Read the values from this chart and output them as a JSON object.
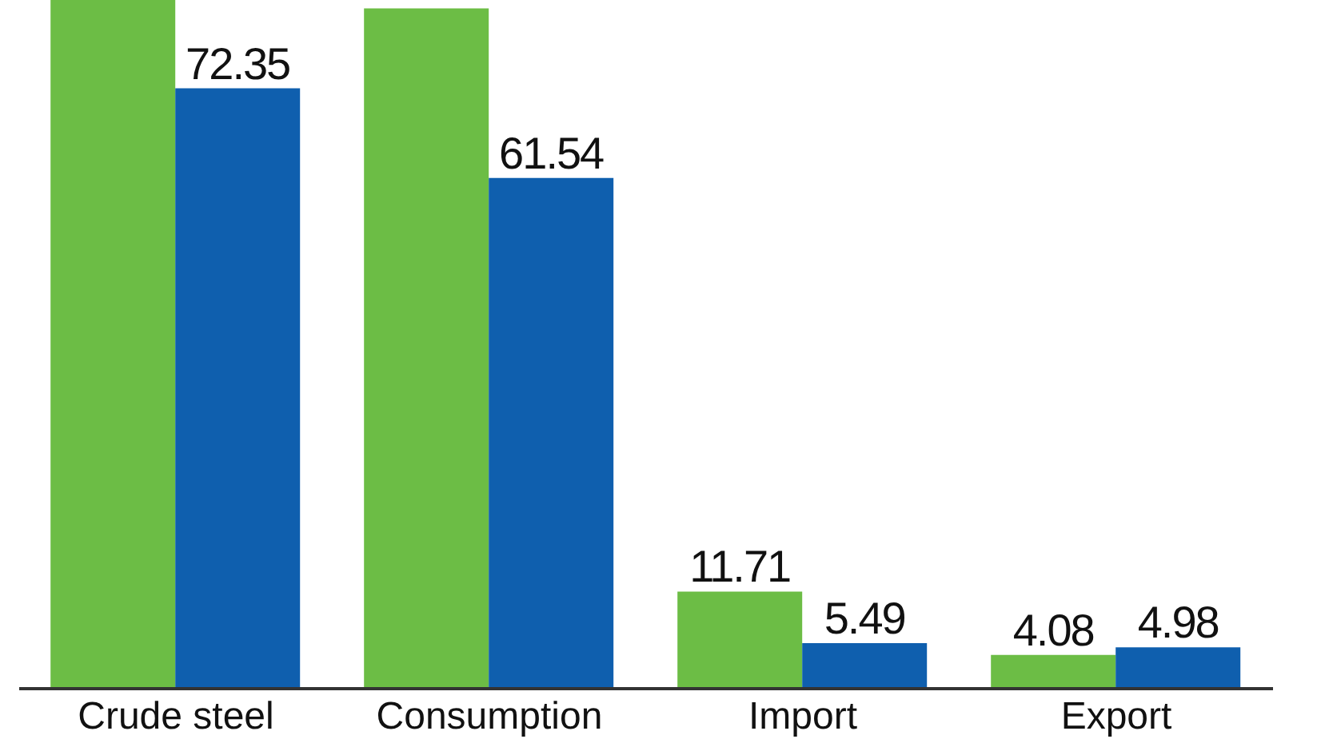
{
  "chart_data": {
    "type": "bar",
    "categories": [
      "Crude steel",
      "Consumption",
      "Import",
      "Export"
    ],
    "series": [
      {
        "color": "#6cbd45",
        "values": [
          83,
          82,
          11.71,
          4.08
        ],
        "value_labels": [
          null,
          null,
          "11.71",
          "4.08"
        ]
      },
      {
        "color": "#0f5fae",
        "values": [
          72.35,
          61.54,
          5.49,
          4.98
        ],
        "value_labels": [
          "72.35",
          "61.54",
          "5.49",
          "4.98"
        ]
      }
    ],
    "ylim": [
      0,
      83
    ],
    "tick_labels": "x"
  }
}
